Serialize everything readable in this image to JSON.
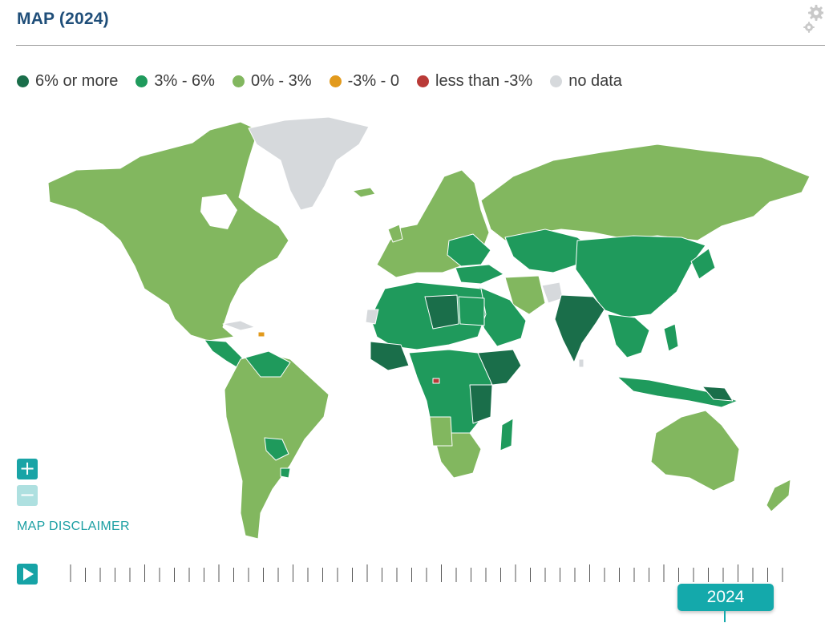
{
  "header": {
    "title": "MAP (2024)"
  },
  "legend": [
    {
      "label": "6% or more",
      "color": "#1a6e4a"
    },
    {
      "label": "3% - 6%",
      "color": "#1f9a5c"
    },
    {
      "label": "0% - 3%",
      "color": "#82b75f"
    },
    {
      "label": "-3% - 0",
      "color": "#e29a1c"
    },
    {
      "label": "less than -3%",
      "color": "#b93a37"
    },
    {
      "label": "no data",
      "color": "#d6d9dc"
    }
  ],
  "controls": {
    "zoom_in_icon": "plus-icon",
    "zoom_out_icon": "minus-icon",
    "disclaimer_label": "MAP DISCLAIMER",
    "play_icon": "play-icon",
    "settings_icon": "gear-icon"
  },
  "timeline": {
    "selected_year": "2024"
  }
}
